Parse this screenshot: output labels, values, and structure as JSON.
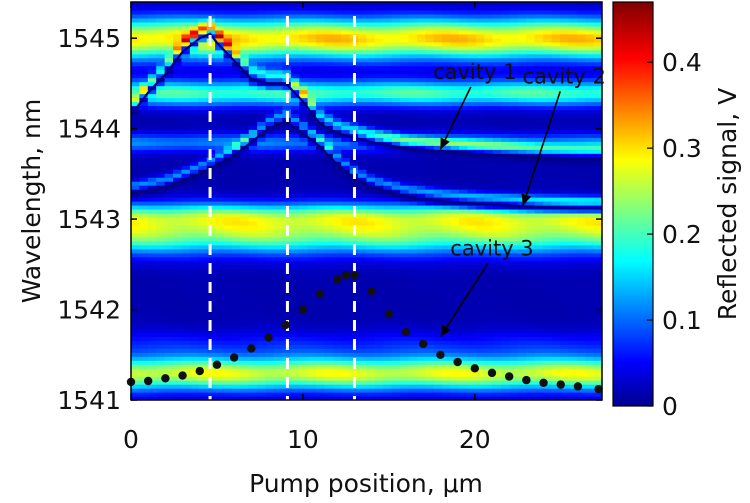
{
  "chart_data": {
    "type": "heatmap",
    "title": "",
    "xlabel": "Pump position, μm",
    "ylabel": "Wavelength, nm",
    "colorbar_label": "Reflected signal, V",
    "xlim": [
      0,
      27.4
    ],
    "ylim": [
      1541,
      1545.4
    ],
    "xticks": [
      "0",
      "10",
      "20"
    ],
    "yticks": [
      "1541",
      "1542",
      "1543",
      "1544",
      "1545"
    ],
    "colorbar_range": [
      0,
      0.47
    ],
    "colorbar_ticks": [
      "0",
      "0.1",
      "0.2",
      "0.3",
      "0.4"
    ],
    "colormap": "jet",
    "dashed_lines_x": [
      4.6,
      9.1,
      13.0
    ],
    "series": [
      {
        "name": "cavity 1",
        "x": [
          0,
          1,
          2,
          3,
          4,
          4.6,
          5,
          6,
          7,
          8,
          9,
          10,
          11,
          12,
          13,
          14,
          16,
          18,
          20,
          22,
          24,
          26,
          27.4
        ],
        "y": [
          1544.15,
          1544.4,
          1544.6,
          1544.85,
          1545.0,
          1545.05,
          1544.95,
          1544.75,
          1544.55,
          1544.5,
          1544.5,
          1544.3,
          1544.05,
          1543.95,
          1543.9,
          1543.85,
          1543.78,
          1543.75,
          1543.72,
          1543.7,
          1543.68,
          1543.67,
          1543.67
        ]
      },
      {
        "name": "cavity 2",
        "x": [
          0,
          2,
          4,
          6,
          7,
          8,
          9,
          10,
          11,
          12,
          13,
          14,
          16,
          18,
          20,
          22,
          24,
          26,
          27.4
        ],
        "y": [
          1543.28,
          1543.35,
          1543.5,
          1543.7,
          1543.85,
          1544.0,
          1544.08,
          1543.95,
          1543.8,
          1543.6,
          1543.45,
          1543.35,
          1543.25,
          1543.2,
          1543.17,
          1543.15,
          1543.13,
          1543.12,
          1543.12
        ]
      },
      {
        "name": "cavity 3",
        "x": [
          0,
          1,
          2,
          3,
          4,
          5,
          6,
          7,
          8,
          9,
          10,
          11,
          12,
          12.5,
          13,
          14,
          15,
          16,
          17,
          18,
          19,
          20,
          21,
          22,
          23,
          24,
          25,
          26,
          27.2
        ],
        "y": [
          1541.2,
          1541.21,
          1541.24,
          1541.27,
          1541.32,
          1541.39,
          1541.47,
          1541.57,
          1541.69,
          1541.83,
          1542.0,
          1542.17,
          1542.33,
          1542.38,
          1542.38,
          1542.2,
          1541.95,
          1541.75,
          1541.62,
          1541.5,
          1541.42,
          1541.35,
          1541.3,
          1541.26,
          1541.22,
          1541.19,
          1541.17,
          1541.15,
          1541.12
        ]
      }
    ],
    "annotations": [
      {
        "text": "cavity 1",
        "x": 20.0,
        "y": 1544.55,
        "arrow_to_x": 18.0,
        "arrow_to_y": 1543.77
      },
      {
        "text": "cavity 2",
        "x": 25.2,
        "y": 1544.5,
        "arrow_to_x": 22.8,
        "arrow_to_y": 1543.15
      },
      {
        "text": "cavity 3",
        "x": 21.0,
        "y": 1542.6,
        "arrow_to_x": 18.0,
        "arrow_to_y": 1541.7
      }
    ]
  }
}
